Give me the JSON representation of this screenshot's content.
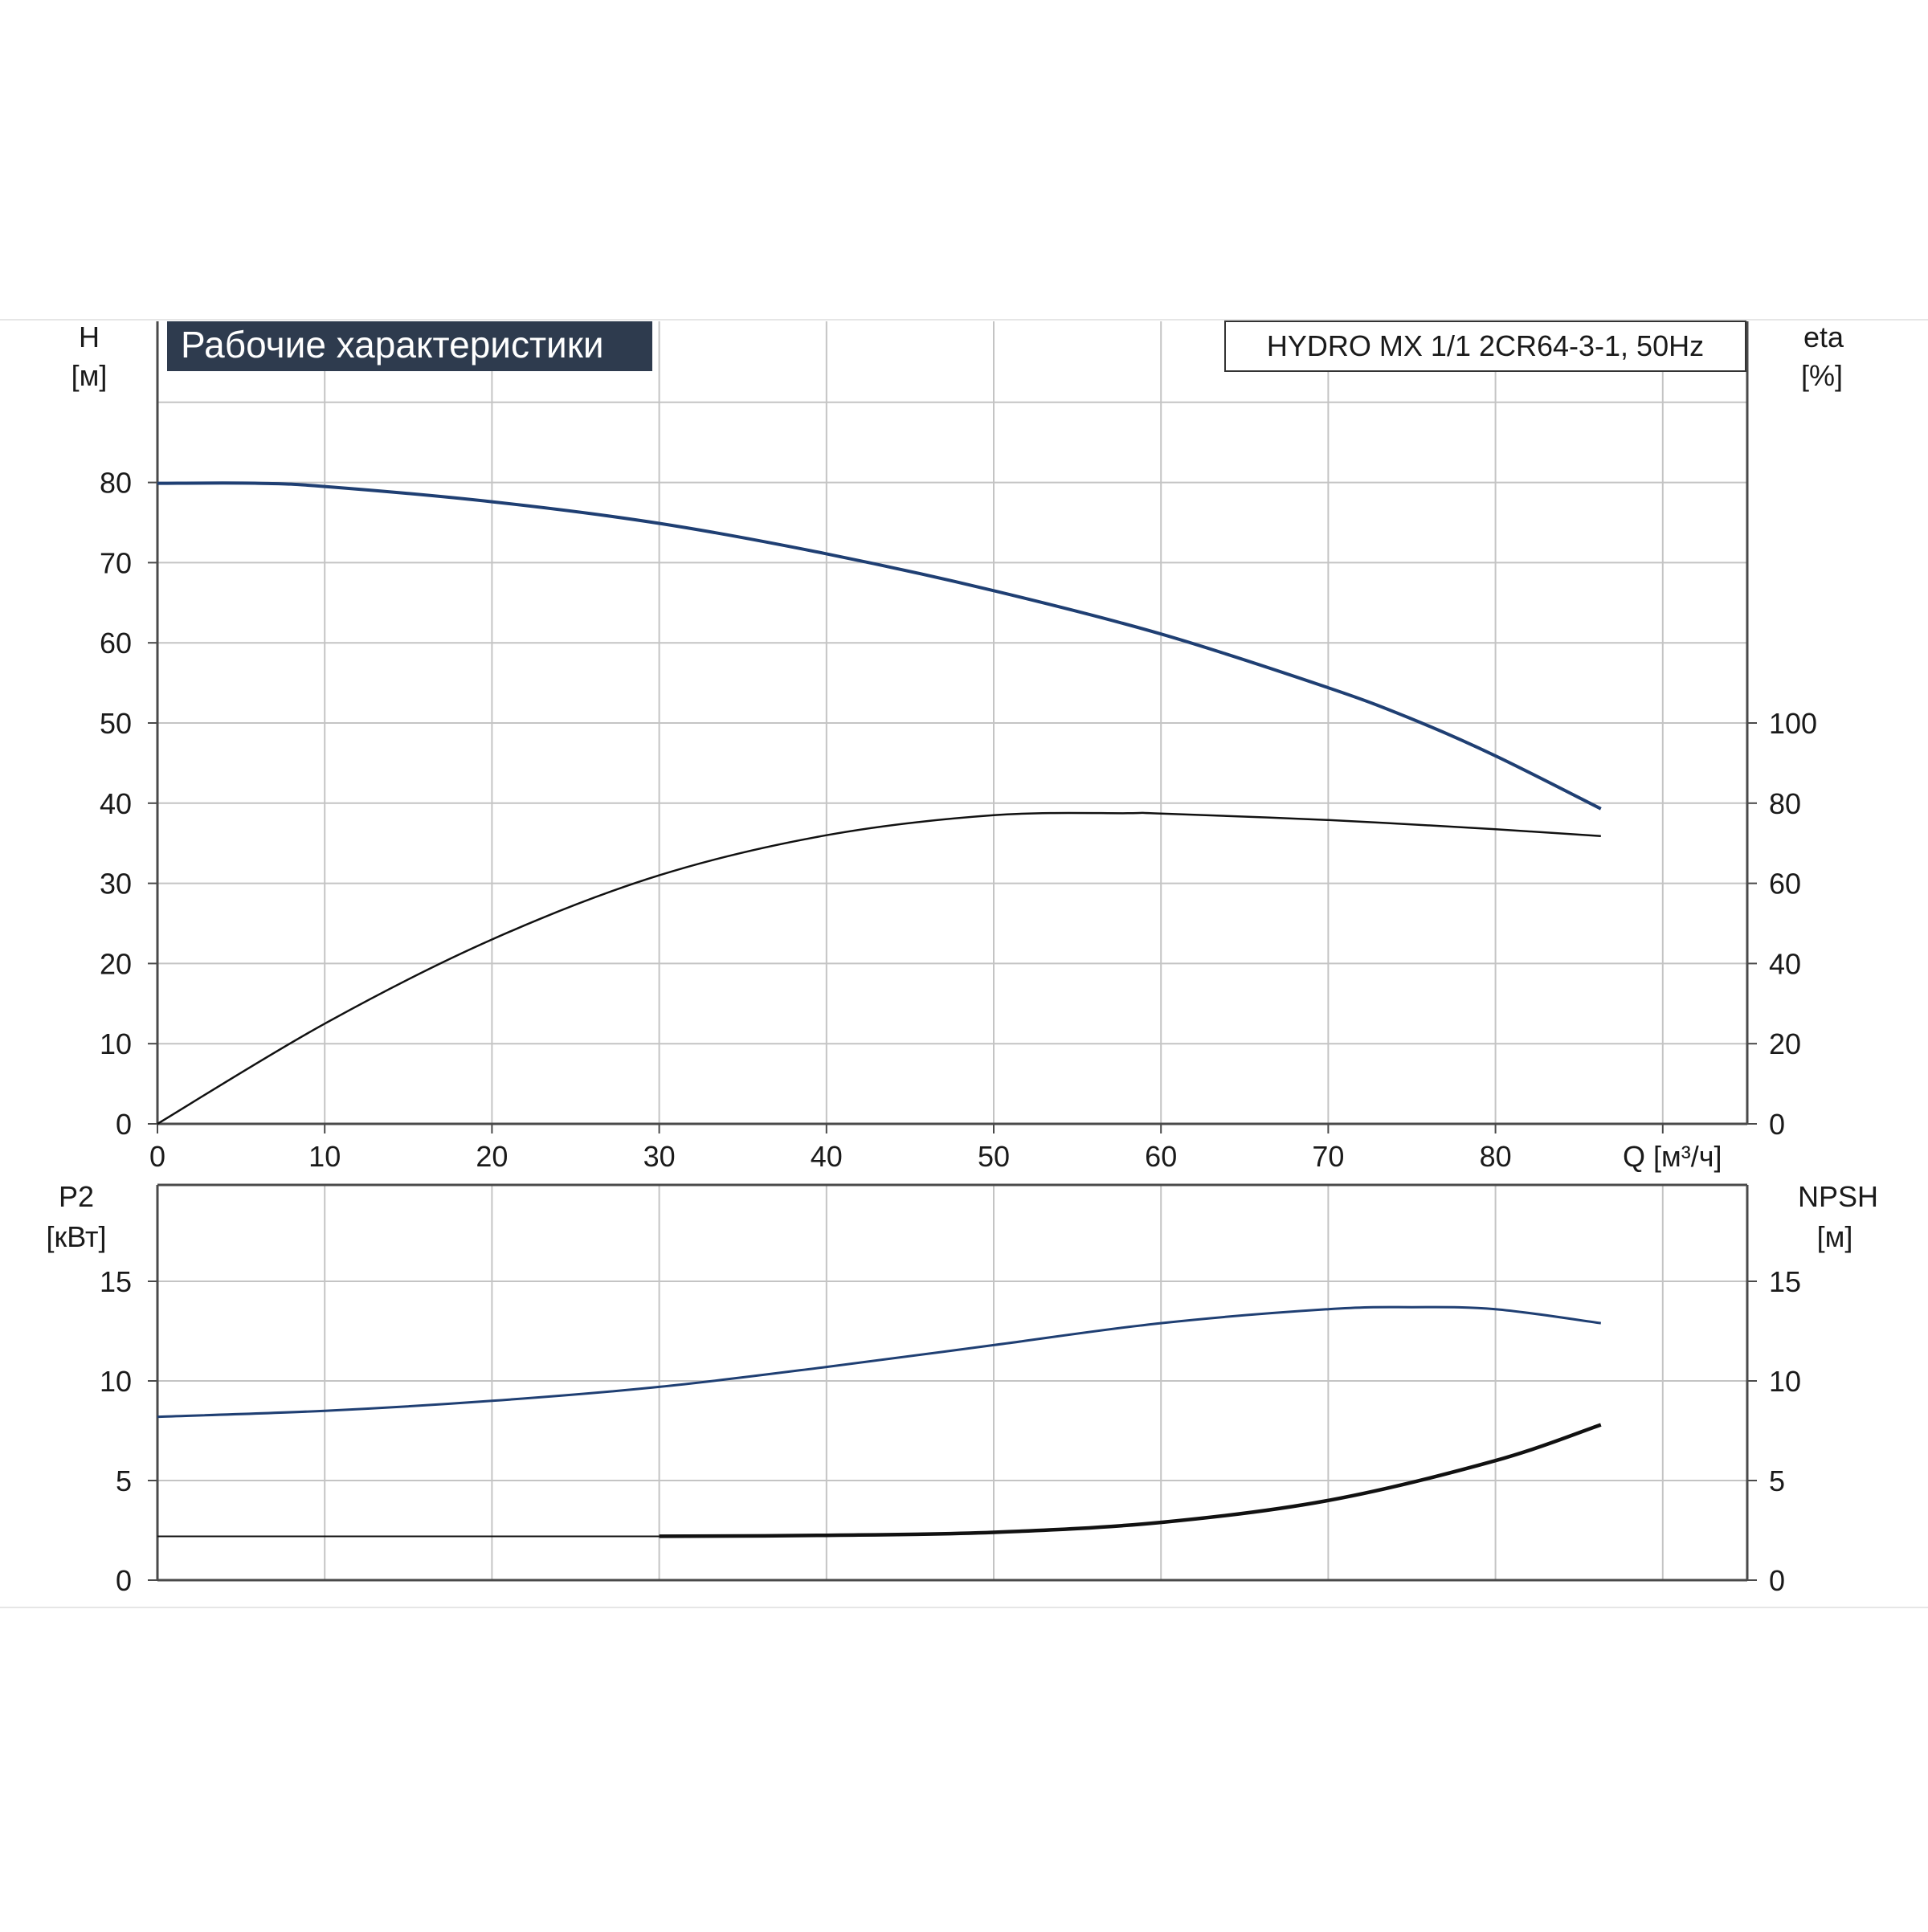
{
  "colors": {
    "grid": "#c4c4c4",
    "axis": "#4a4a4a",
    "head_curve": "#1f3f73",
    "eff_curve": "#111111",
    "p2_curve": "#1f3f73",
    "npsh_curve": "#111111",
    "title_bg": "#2e3b4e",
    "title_fg": "#ffffff"
  },
  "chart_data": [
    {
      "type": "line",
      "title": "Рабочие характеристики",
      "subtitle": "HYDRO MX 1/1 2CR64-3-1, 50Hz",
      "xlabel": "Q [м³/ч]",
      "xlim": [
        0,
        95
      ],
      "x_ticks": [
        0,
        10,
        20,
        30,
        40,
        50,
        60,
        70,
        80
      ],
      "y_left": {
        "label_line1": "H",
        "label_line2": "[м]",
        "lim": [
          0,
          80
        ],
        "ticks": [
          0,
          10,
          20,
          30,
          40,
          50,
          60,
          70,
          80
        ]
      },
      "y_right": {
        "label_line1": "eta",
        "label_line2": "[%]",
        "lim": [
          0,
          100
        ],
        "ticks": [
          0,
          20,
          40,
          60,
          80,
          100
        ]
      },
      "grid": true,
      "series": [
        {
          "axis": "left",
          "x": [
            0,
            6,
            10,
            20,
            30,
            40,
            50,
            60,
            70,
            75,
            80,
            86.3
          ],
          "y": [
            79.9,
            79.9,
            79.5,
            77.6,
            74.9,
            71.1,
            66.5,
            61.1,
            54.4,
            50.5,
            45.9,
            39.3
          ]
        },
        {
          "axis": "right",
          "x": [
            0,
            10,
            20,
            30,
            40,
            50,
            58,
            60,
            70,
            80,
            86.3
          ],
          "y": [
            0,
            25,
            46,
            62,
            72,
            77,
            77.5,
            77.4,
            75.8,
            73.5,
            71.8
          ]
        }
      ]
    },
    {
      "type": "line",
      "xlim": [
        0,
        95
      ],
      "x_ticks": [
        0,
        10,
        20,
        30,
        40,
        50,
        60,
        70,
        80
      ],
      "y_left": {
        "label_line1": "P2",
        "label_line2": "[кВт]",
        "lim": [
          0,
          15
        ],
        "ticks": [
          0,
          5,
          10,
          15
        ]
      },
      "y_right": {
        "label_line1": "NPSH",
        "label_line2": "[м]",
        "lim": [
          0,
          15
        ],
        "ticks": [
          0,
          5,
          10,
          15
        ]
      },
      "grid": true,
      "series": [
        {
          "axis": "left",
          "x": [
            0,
            10,
            20,
            30,
            40,
            50,
            60,
            70,
            75,
            80,
            86.3
          ],
          "y": [
            8.2,
            8.5,
            9.0,
            9.7,
            10.7,
            11.8,
            12.9,
            13.6,
            13.7,
            13.6,
            12.9
          ]
        },
        {
          "axis": "right",
          "x": [
            0,
            30,
            40,
            50,
            60,
            70,
            80,
            86.3
          ],
          "y": [
            2.2,
            2.2,
            2.25,
            2.4,
            2.9,
            4.0,
            6.0,
            7.8
          ]
        }
      ]
    }
  ]
}
